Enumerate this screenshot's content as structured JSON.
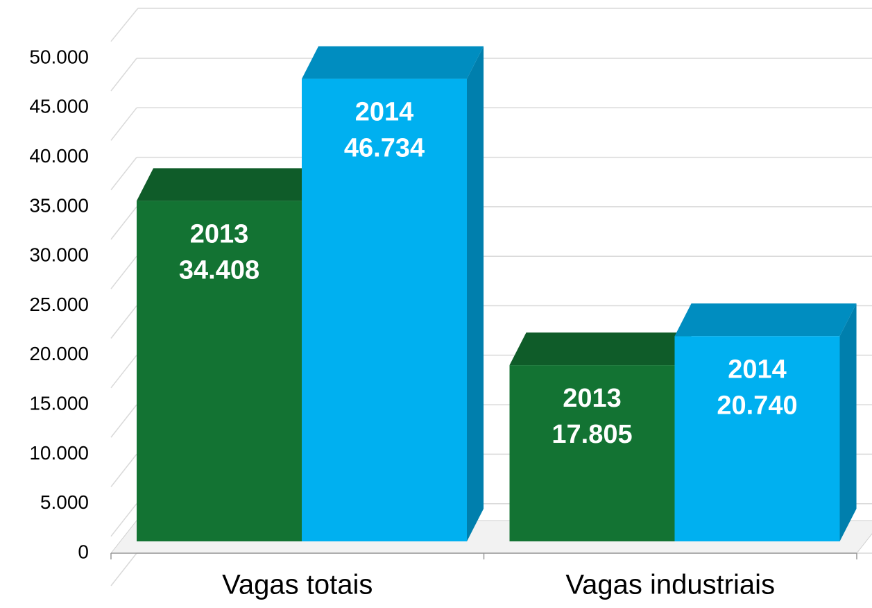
{
  "chart_data": {
    "type": "bar3d",
    "categories": [
      "Vagas totais",
      "Vagas industriais"
    ],
    "series": [
      {
        "name": "2013",
        "color": "#137333",
        "values": [
          34408,
          17805
        ],
        "value_labels": [
          "34.408",
          "17.805"
        ]
      },
      {
        "name": "2014",
        "color": "#00b0f0",
        "values": [
          46734,
          20740
        ],
        "value_labels": [
          "46.734",
          "20.740"
        ]
      }
    ],
    "ylim": [
      0,
      55000
    ],
    "yticks": [
      0,
      {
        "value": 5000,
        "label": "5.000"
      },
      {
        "value": 10000,
        "label": "10.000"
      },
      {
        "value": 15000,
        "label": "15.000"
      },
      {
        "value": 20000,
        "label": "20.000"
      },
      {
        "value": 25000,
        "label": "25.000"
      },
      {
        "value": 30000,
        "label": "30.000"
      },
      {
        "value": 35000,
        "label": "35.000"
      },
      {
        "value": 40000,
        "label": "40.000"
      },
      {
        "value": 45000,
        "label": "45.000"
      },
      {
        "value": 50000,
        "label": "50.000"
      }
    ],
    "grid": true
  }
}
